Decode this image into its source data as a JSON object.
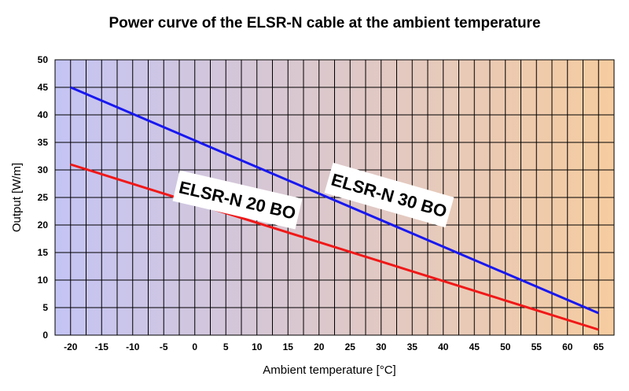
{
  "chart_data": {
    "type": "line",
    "title": "Power curve of the ELSR-N cable at the ambient temperature",
    "xlabel": "Ambient temperature   [°C]",
    "ylabel": "Output   [W/m]",
    "xlim": [
      -22.5,
      67.5
    ],
    "ylim": [
      0,
      50
    ],
    "xticks": [
      -20,
      -15,
      -10,
      -5,
      0,
      5,
      10,
      15,
      20,
      25,
      30,
      35,
      40,
      45,
      50,
      55,
      60,
      65
    ],
    "yticks": [
      0,
      5,
      10,
      15,
      20,
      25,
      30,
      35,
      40,
      45,
      50
    ],
    "grid": true,
    "legend": "none",
    "background": {
      "gradient_from": "#c4c4f4",
      "gradient_to": "#f6cca0"
    },
    "series": [
      {
        "name": "ELSR-N 30 BO",
        "color": "#1818f0",
        "x": [
          -20,
          65
        ],
        "y": [
          45,
          4
        ]
      },
      {
        "name": "ELSR-N 20 BO",
        "color": "#f01818",
        "x": [
          -20,
          65
        ],
        "y": [
          31,
          1
        ]
      }
    ],
    "annotations": [
      {
        "text": "ELSR-N 20 BO",
        "series": "ELSR-N 20 BO"
      },
      {
        "text": "ELSR-N 30 BO",
        "series": "ELSR-N 30 BO"
      }
    ]
  }
}
